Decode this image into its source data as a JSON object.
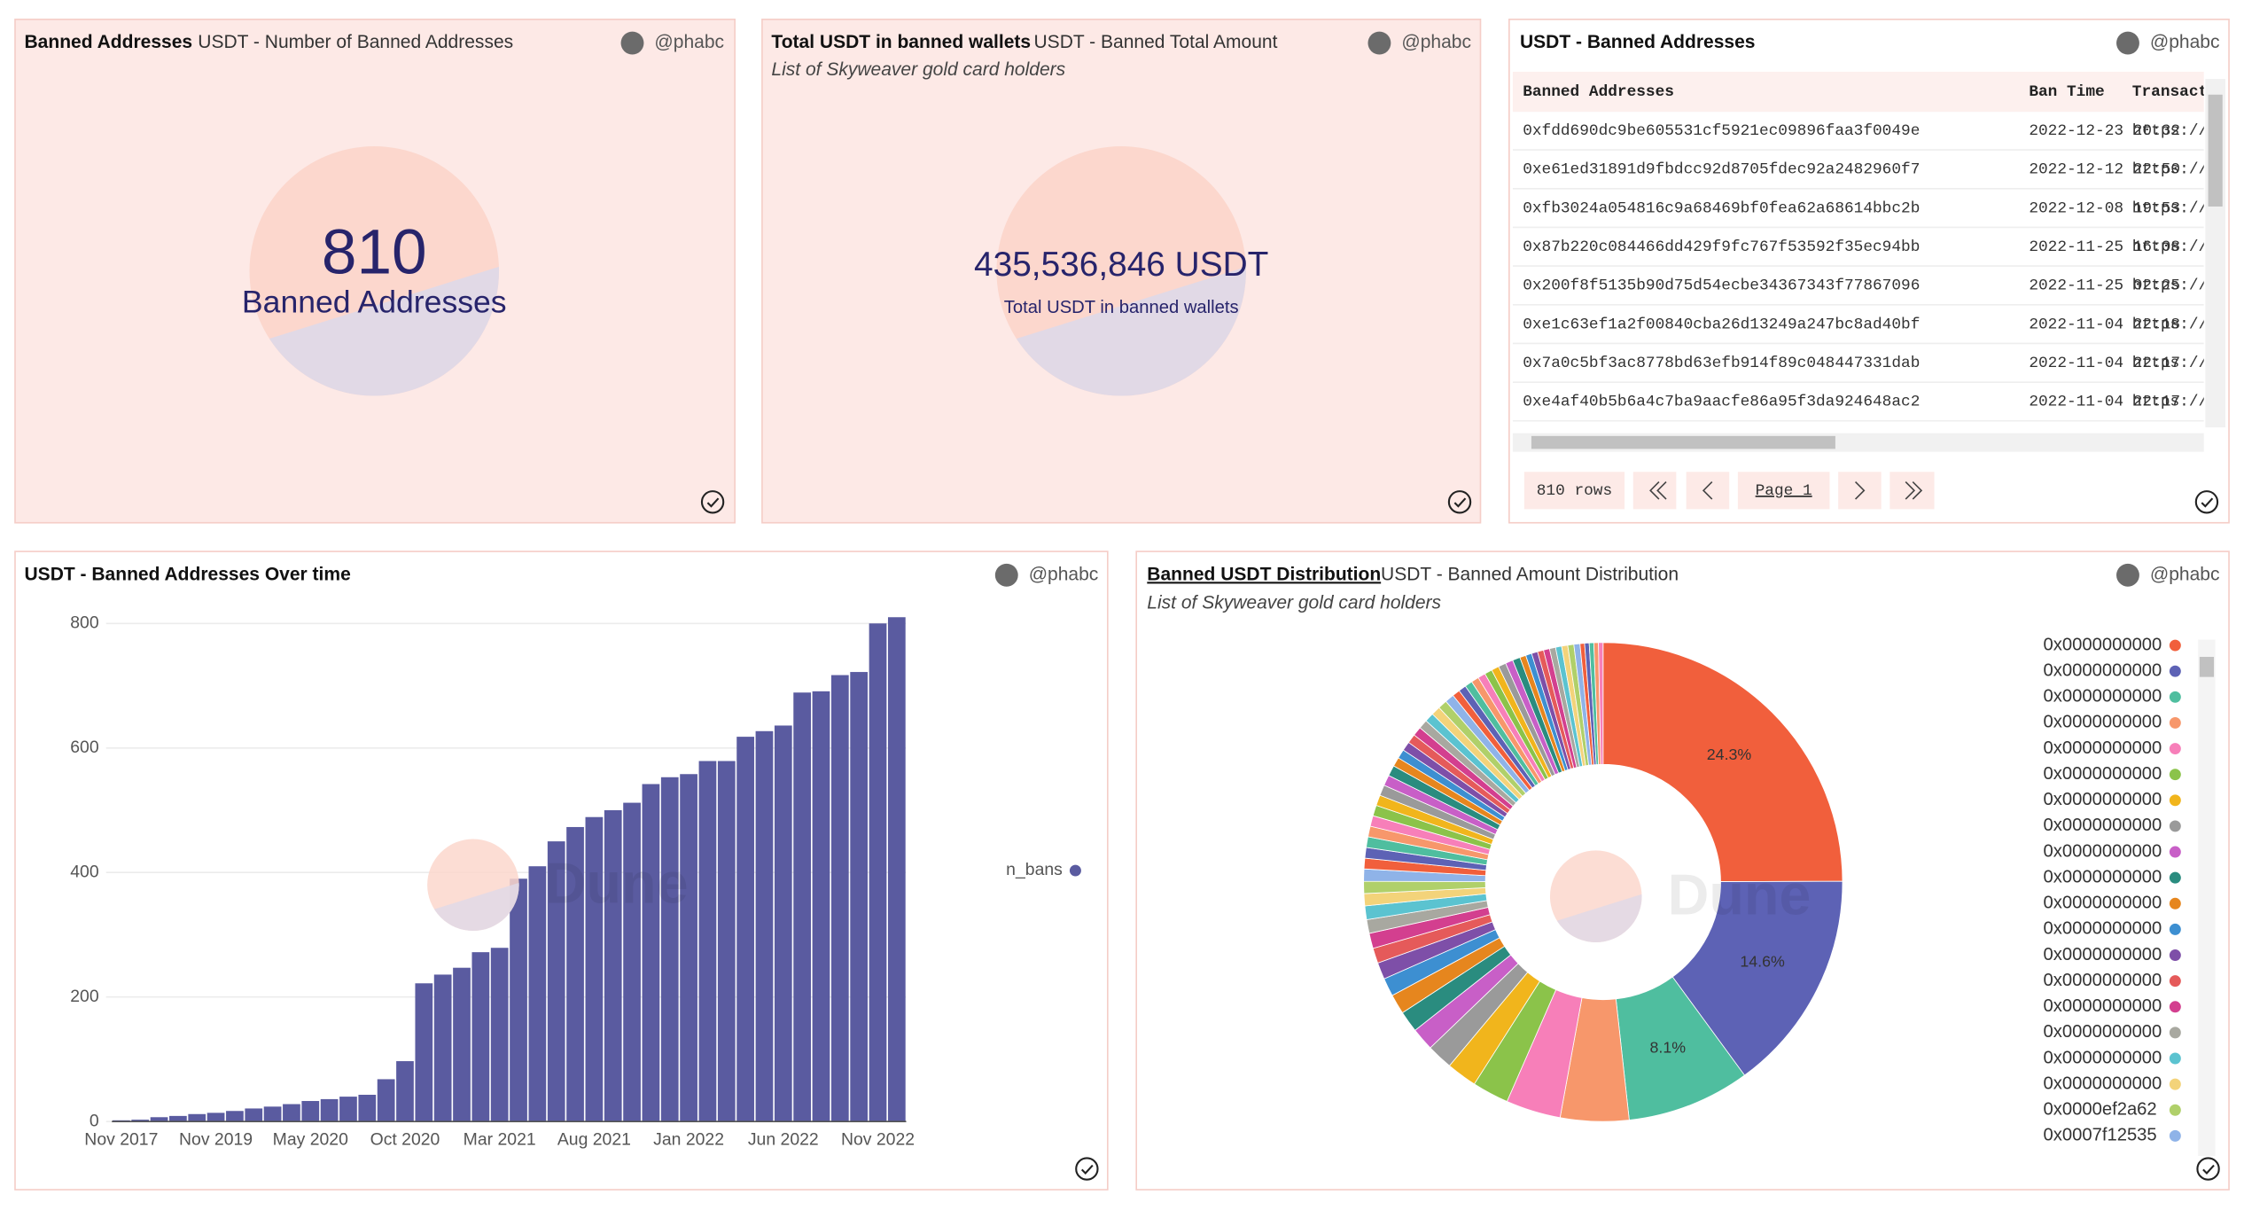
{
  "author": "@phabc",
  "watermark": "Dune",
  "counters": [
    {
      "title": "Banned Addresses",
      "subtitle": "USDT - Number of Banned Addresses",
      "value": "810",
      "label": "Banned Addresses"
    },
    {
      "title": "Total USDT in banned wallets",
      "subtitle": "USDT - Banned Total Amount",
      "description": "List of Skyweaver gold card holders",
      "value": "435,536,846 USDT",
      "label": "Total USDT in banned wallets"
    }
  ],
  "table": {
    "title": "USDT - Banned Addresses",
    "columns": [
      "Banned Addresses",
      "Ban Time",
      "Transact"
    ],
    "rows": [
      [
        "0xfdd690dc9be605531cf5921ec09896faa3f0049e",
        "2022-12-23 20:32",
        "https://"
      ],
      [
        "0xe61ed31891d9fbdcc92d8705fdec92a2482960f7",
        "2022-12-12 22:50",
        "https://"
      ],
      [
        "0xfb3024a054816c9a68469bf0fea62a68614bbc2b",
        "2022-12-08 19:53",
        "https://"
      ],
      [
        "0x87b220c084466dd429f9fc767f53592f35ec94bb",
        "2022-11-25 16:08",
        "https://"
      ],
      [
        "0x200f8f5135b90d75d54ecbe34367343f77867096",
        "2022-11-25 02:25",
        "https://"
      ],
      [
        "0xe1c63ef1a2f00840cba26d13249a247bc8ad40bf",
        "2022-11-04 22:18",
        "https://"
      ],
      [
        "0x7a0c5bf3ac8778bd63efb914f89c048447331dab",
        "2022-11-04 22:17",
        "https://"
      ],
      [
        "0xe4af40b5b6a4c7ba9aacfe86a95f3da924648ac2",
        "2022-11-04 22:17",
        "https://"
      ]
    ],
    "row_count": "810 rows",
    "page": "Page 1"
  },
  "chart_data": [
    {
      "type": "bar",
      "title": "USDT - Banned Addresses Over time",
      "categories": [
        "Nov 2017",
        null,
        null,
        null,
        null,
        "Nov 2019",
        null,
        null,
        null,
        null,
        "May 2020",
        null,
        null,
        null,
        null,
        "Oct 2020",
        null,
        null,
        null,
        null,
        "Mar 2021",
        null,
        null,
        null,
        null,
        "Aug 2021",
        null,
        null,
        null,
        null,
        "Jan 2022",
        null,
        null,
        null,
        null,
        "Jun 2022",
        null,
        null,
        null,
        null,
        "Nov 2022",
        null
      ],
      "series": [
        {
          "name": "n_bans",
          "color": "#5a5ba0",
          "values": [
            2,
            3,
            7,
            9,
            12,
            14,
            17,
            21,
            24,
            28,
            33,
            36,
            40,
            43,
            68,
            97,
            222,
            236,
            247,
            272,
            279,
            390,
            410,
            450,
            473,
            489,
            500,
            512,
            542,
            553,
            558,
            579,
            579,
            618,
            627,
            636,
            689,
            691,
            717,
            722,
            800,
            810
          ]
        }
      ],
      "ylim": [
        0,
        820
      ],
      "yticks": [
        0,
        200,
        400,
        600,
        800
      ],
      "grid": true,
      "legend": "right"
    },
    {
      "type": "pie",
      "title": "Banned USDT Distribution",
      "subtitle": "USDT - Banned Amount Distribution",
      "description": "List of Skyweaver gold card holders",
      "donut": true,
      "categories": [
        "0x0000000000",
        "0x0000000000",
        "0x0000000000",
        "0x0000000000",
        "0x0000000000",
        "0x0000000000",
        "0x0000000000",
        "0x0000000000",
        "0x0000000000",
        "0x0000000000",
        "0x0000000000",
        "0x0000000000",
        "0x0000000000",
        "0x0000000000",
        "0x0000000000",
        "0x0000000000",
        "0x0000000000",
        "0x0000000000",
        "0x0000ef2a62",
        "0x0007f12535",
        null,
        null,
        null,
        null,
        null,
        null,
        null,
        null,
        null,
        null,
        null,
        null,
        null,
        null,
        null,
        null,
        null,
        null,
        null,
        null,
        null,
        null,
        null,
        null,
        null,
        null,
        null,
        null,
        null,
        null,
        null,
        null,
        null,
        null,
        null,
        null,
        null,
        null,
        null,
        null,
        null,
        null,
        null,
        null,
        null
      ],
      "values": [
        24.3,
        14.6,
        8.1,
        4.5,
        3.6,
        2.4,
        2.0,
        1.7,
        1.5,
        1.4,
        1.3,
        1.2,
        1.1,
        1.0,
        1.0,
        0.9,
        0.9,
        0.8,
        0.8,
        0.8,
        0.7,
        0.7,
        0.7,
        0.7,
        0.7,
        0.7,
        0.7,
        0.7,
        0.7,
        0.7,
        0.6,
        0.6,
        0.6,
        0.6,
        0.6,
        0.6,
        0.6,
        0.6,
        0.6,
        0.6,
        0.5,
        0.5,
        0.5,
        0.5,
        0.5,
        0.5,
        0.5,
        0.5,
        0.5,
        0.5,
        0.4,
        0.4,
        0.4,
        0.4,
        0.4,
        0.4,
        0.4,
        0.4,
        0.4,
        0.4,
        0.3,
        0.3,
        0.3,
        0.3,
        0.3
      ],
      "value_labels": [
        "24.3%",
        "14.6%",
        "8.1%",
        null,
        null,
        null,
        null,
        null,
        null,
        null,
        null,
        null,
        null,
        null,
        null,
        null,
        null,
        null,
        null,
        null,
        null,
        null,
        null,
        null,
        null,
        null,
        null,
        null,
        null,
        null,
        null,
        null,
        null,
        null,
        null,
        null,
        null,
        null,
        null,
        null,
        null,
        null,
        null,
        null,
        null,
        null,
        null,
        null,
        null,
        null,
        null,
        null,
        null,
        null,
        null,
        null,
        null,
        null,
        null,
        null,
        null,
        null,
        null,
        null,
        null
      ],
      "palette": [
        "#f15f3c",
        "#5d62b5",
        "#4fbe9f",
        "#f7976b",
        "#f77fb9",
        "#8bc34a",
        "#f1b51c",
        "#9a9a9a",
        "#c85fc7",
        "#2a8c7f",
        "#e6861e",
        "#3d8fd1",
        "#7e4fa8",
        "#e55a5a",
        "#d33f8f",
        "#a8a8a0",
        "#5bc3d0",
        "#f3d37a",
        "#b0d06a",
        "#8fb3e8"
      ],
      "legend": "right"
    }
  ]
}
